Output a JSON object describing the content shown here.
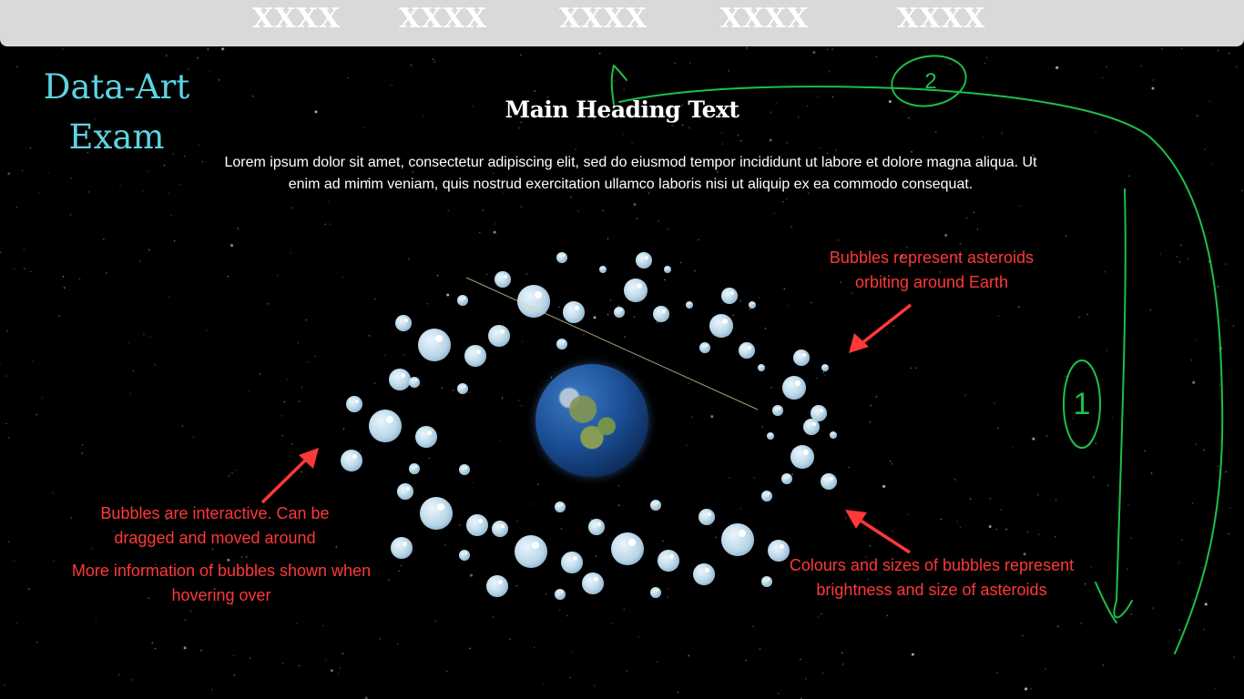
{
  "nav": {
    "items": [
      {
        "label": "XXXX"
      },
      {
        "label": "XXXX"
      },
      {
        "label": "XXXX"
      },
      {
        "label": "XXXX"
      },
      {
        "label": "XXXX"
      }
    ]
  },
  "logo": {
    "line1": "Data-Art",
    "line2": "Exam"
  },
  "main": {
    "heading": "Main Heading Text",
    "paragraph": "Lorem ipsum dolor sit amet, consectetur adipiscing elit, sed do eiusmod tempor incididunt ut labore et dolore magna aliqua. Ut enim ad minim veniam, quis nostrud exercitation ullamco laboris nisi ut aliquip ex ea commodo consequat."
  },
  "annotations": {
    "top_right": "Bubbles represent asteroids orbiting around Earth",
    "left_interactive": "Bubbles are interactive. Can be dragged and moved around",
    "left_hover": "More information of bubbles shown when hovering over",
    "bottom_right": "Colours and sizes of bubbles represent brightness and size of asteroids"
  },
  "sketch": {
    "step_1": "1",
    "step_2": "2"
  },
  "colors": {
    "background": "#000000",
    "navbar": "#d9d9d9",
    "logo": "#5ed3e3",
    "annotation": "#ff3838",
    "sketch": "#1fbf4a",
    "bubble": "#bcd9ea"
  }
}
